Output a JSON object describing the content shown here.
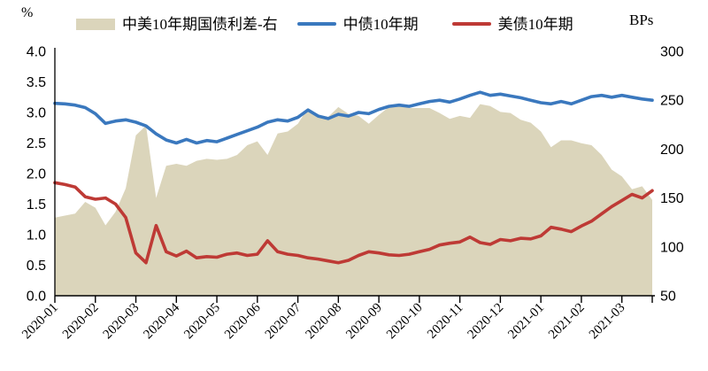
{
  "page": {
    "background": "#ffffff"
  },
  "legend": {
    "items": [
      {
        "type": "area",
        "label": "中美10年期国债利差-右",
        "color": "#DBD5BB"
      },
      {
        "type": "line",
        "label": "中债10年期",
        "color": "#3A78BE"
      },
      {
        "type": "line",
        "label": "美债10年期",
        "color": "#BE3A35"
      }
    ]
  },
  "axes": {
    "left_unit": "%",
    "right_unit": "BPs",
    "left_ticks": [
      "4.0",
      "3.5",
      "3.0",
      "2.5",
      "2.0",
      "1.5",
      "1.0",
      "0.5",
      "0.0"
    ],
    "right_ticks": [
      "300",
      "250",
      "200",
      "150",
      "100",
      "50"
    ],
    "left_range": [
      0.0,
      4.0
    ],
    "right_range": [
      50,
      300
    ],
    "grid": "off",
    "axis_color": "#000000"
  },
  "chart_data": {
    "type": "line+area",
    "title": "",
    "x_ticks": [
      "2020-01",
      "2020-02",
      "2020-03",
      "2020-04",
      "2020-05",
      "2020-06",
      "2020-07",
      "2020-08",
      "2020-09",
      "2020-10",
      "2020-11",
      "2020-12",
      "2021-01",
      "2021-02",
      "2021-03"
    ],
    "points_per_month": 4,
    "series": [
      {
        "name": "中美10年期国债利差-右",
        "type": "area",
        "axis": "right",
        "unit": "BPs",
        "color": "#DBD5BB",
        "values": [
          130,
          132,
          134,
          146,
          140,
          122,
          136,
          160,
          214,
          224,
          150,
          183,
          185,
          183,
          188,
          190,
          189,
          190,
          194,
          204,
          208,
          194,
          216,
          218,
          226,
          242,
          234,
          233,
          243,
          236,
          234,
          226,
          235,
          243,
          246,
          242,
          242,
          242,
          237,
          231,
          234,
          232,
          246,
          244,
          238,
          237,
          230,
          227,
          218,
          202,
          209,
          209,
          206,
          204,
          194,
          179,
          172,
          159,
          162,
          148
        ]
      },
      {
        "name": "中债10年期",
        "type": "line",
        "axis": "left",
        "unit": "%",
        "color": "#3A78BE",
        "values": [
          3.15,
          3.14,
          3.12,
          3.08,
          2.98,
          2.82,
          2.86,
          2.88,
          2.84,
          2.78,
          2.65,
          2.55,
          2.5,
          2.56,
          2.5,
          2.54,
          2.52,
          2.58,
          2.64,
          2.7,
          2.76,
          2.84,
          2.88,
          2.86,
          2.92,
          3.04,
          2.94,
          2.9,
          2.97,
          2.94,
          3.0,
          2.98,
          3.05,
          3.1,
          3.12,
          3.1,
          3.14,
          3.18,
          3.2,
          3.17,
          3.22,
          3.28,
          3.33,
          3.28,
          3.3,
          3.27,
          3.24,
          3.2,
          3.16,
          3.14,
          3.18,
          3.14,
          3.2,
          3.26,
          3.28,
          3.25,
          3.28,
          3.25,
          3.22,
          3.2
        ]
      },
      {
        "name": "美债10年期",
        "type": "line",
        "axis": "left",
        "unit": "%",
        "color": "#BE3A35",
        "values": [
          1.85,
          1.82,
          1.78,
          1.62,
          1.58,
          1.6,
          1.5,
          1.28,
          0.7,
          0.54,
          1.15,
          0.72,
          0.65,
          0.73,
          0.62,
          0.64,
          0.63,
          0.68,
          0.7,
          0.66,
          0.68,
          0.9,
          0.72,
          0.68,
          0.66,
          0.62,
          0.6,
          0.57,
          0.54,
          0.58,
          0.66,
          0.72,
          0.7,
          0.67,
          0.66,
          0.68,
          0.72,
          0.76,
          0.83,
          0.86,
          0.88,
          0.96,
          0.87,
          0.84,
          0.92,
          0.9,
          0.94,
          0.93,
          0.98,
          1.12,
          1.09,
          1.05,
          1.14,
          1.22,
          1.34,
          1.46,
          1.56,
          1.66,
          1.6,
          1.72
        ]
      }
    ]
  }
}
